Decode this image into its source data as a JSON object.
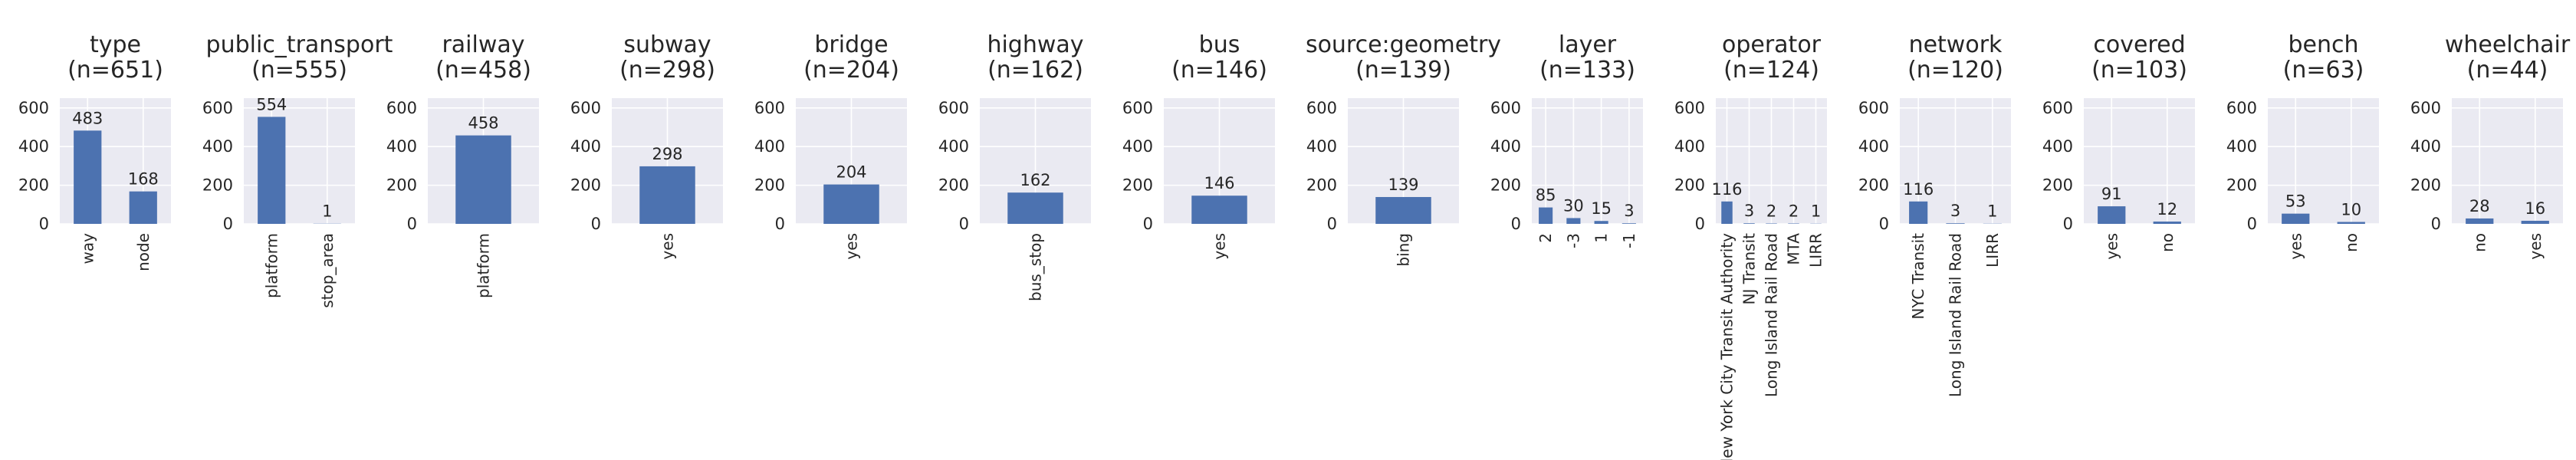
{
  "figure": {
    "background": "#ffffff",
    "plot_background": "#eaeaf2",
    "grid_color": "#ffffff",
    "bar_color": "#4c72b0",
    "text_color": "#262626"
  },
  "chart_data": [
    {
      "type": "bar",
      "title": "type",
      "count_label": "(n=651)",
      "categories": [
        "way",
        "node"
      ],
      "values": [
        483,
        168
      ],
      "ylim": [
        0,
        651
      ],
      "yticks": [
        0,
        200,
        400,
        600
      ],
      "grid": true
    },
    {
      "type": "bar",
      "title": "public_transport",
      "count_label": "(n=555)",
      "categories": [
        "platform",
        "stop_area"
      ],
      "values": [
        554,
        1
      ],
      "ylim": [
        0,
        651
      ],
      "yticks": [
        0,
        200,
        400,
        600
      ],
      "grid": true
    },
    {
      "type": "bar",
      "title": "railway",
      "count_label": "(n=458)",
      "categories": [
        "platform"
      ],
      "values": [
        458
      ],
      "ylim": [
        0,
        651
      ],
      "yticks": [
        0,
        200,
        400,
        600
      ],
      "grid": true
    },
    {
      "type": "bar",
      "title": "subway",
      "count_label": "(n=298)",
      "categories": [
        "yes"
      ],
      "values": [
        298
      ],
      "ylim": [
        0,
        651
      ],
      "yticks": [
        0,
        200,
        400,
        600
      ],
      "grid": true
    },
    {
      "type": "bar",
      "title": "bridge",
      "count_label": "(n=204)",
      "categories": [
        "yes"
      ],
      "values": [
        204
      ],
      "ylim": [
        0,
        651
      ],
      "yticks": [
        0,
        200,
        400,
        600
      ],
      "grid": true
    },
    {
      "type": "bar",
      "title": "highway",
      "count_label": "(n=162)",
      "categories": [
        "bus_stop"
      ],
      "values": [
        162
      ],
      "ylim": [
        0,
        651
      ],
      "yticks": [
        0,
        200,
        400,
        600
      ],
      "grid": true
    },
    {
      "type": "bar",
      "title": "bus",
      "count_label": "(n=146)",
      "categories": [
        "yes"
      ],
      "values": [
        146
      ],
      "ylim": [
        0,
        651
      ],
      "yticks": [
        0,
        200,
        400,
        600
      ],
      "grid": true
    },
    {
      "type": "bar",
      "title": "source:geometry",
      "count_label": "(n=139)",
      "categories": [
        "bing"
      ],
      "values": [
        139
      ],
      "ylim": [
        0,
        651
      ],
      "yticks": [
        0,
        200,
        400,
        600
      ],
      "grid": true
    },
    {
      "type": "bar",
      "title": "layer",
      "count_label": "(n=133)",
      "categories": [
        "2",
        "-3",
        "1",
        "-1"
      ],
      "values": [
        85,
        30,
        15,
        3
      ],
      "ylim": [
        0,
        651
      ],
      "yticks": [
        0,
        200,
        400,
        600
      ],
      "grid": true
    },
    {
      "type": "bar",
      "title": "operator",
      "count_label": "(n=124)",
      "categories": [
        "New York City Transit Authority",
        "NJ Transit",
        "Long Island Rail Road",
        "MTA",
        "LIRR"
      ],
      "values": [
        116,
        3,
        2,
        2,
        1
      ],
      "ylim": [
        0,
        651
      ],
      "yticks": [
        0,
        200,
        400,
        600
      ],
      "grid": true
    },
    {
      "type": "bar",
      "title": "network",
      "count_label": "(n=120)",
      "categories": [
        "NYC Transit",
        "Long Island Rail Road",
        "LIRR"
      ],
      "values": [
        116,
        3,
        1
      ],
      "ylim": [
        0,
        651
      ],
      "yticks": [
        0,
        200,
        400,
        600
      ],
      "grid": true
    },
    {
      "type": "bar",
      "title": "covered",
      "count_label": "(n=103)",
      "categories": [
        "yes",
        "no"
      ],
      "values": [
        91,
        12
      ],
      "ylim": [
        0,
        651
      ],
      "yticks": [
        0,
        200,
        400,
        600
      ],
      "grid": true
    },
    {
      "type": "bar",
      "title": "bench",
      "count_label": "(n=63)",
      "categories": [
        "yes",
        "no"
      ],
      "values": [
        53,
        10
      ],
      "ylim": [
        0,
        651
      ],
      "yticks": [
        0,
        200,
        400,
        600
      ],
      "grid": true
    },
    {
      "type": "bar",
      "title": "wheelchair",
      "count_label": "(n=44)",
      "categories": [
        "no",
        "yes"
      ],
      "values": [
        28,
        16
      ],
      "ylim": [
        0,
        651
      ],
      "yticks": [
        0,
        200,
        400,
        600
      ],
      "grid": true
    }
  ]
}
